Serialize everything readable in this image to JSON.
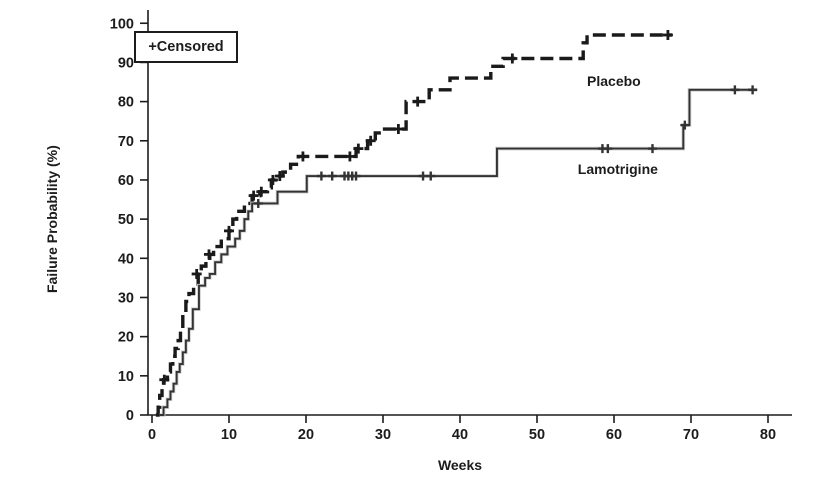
{
  "figure": {
    "background": "#ffffff",
    "ink_color": "#1c1c1c"
  },
  "chart_data": {
    "type": "line",
    "subtype": "kaplan-meier-step",
    "title": "",
    "xlabel": "Weeks",
    "ylabel": "Failure Probability (%)",
    "xlim": [
      0,
      80
    ],
    "ylim": [
      0,
      100
    ],
    "xticks": [
      0,
      10,
      20,
      30,
      40,
      50,
      60,
      70,
      80
    ],
    "yticks": [
      0,
      10,
      20,
      30,
      40,
      50,
      60,
      70,
      80,
      90,
      100
    ],
    "grid": false,
    "legend": {
      "text": "+Censored",
      "position": "top-left"
    },
    "series": [
      {
        "name": "Placebo",
        "line_style": "dashed",
        "color": "#1a1a1a",
        "label_anchor": {
          "week": 56.5,
          "prob": 84
        },
        "steps": [
          [
            0.5,
            0
          ],
          [
            0.8,
            2
          ],
          [
            1,
            5
          ],
          [
            1.3,
            7
          ],
          [
            1.5,
            9
          ],
          [
            2,
            11
          ],
          [
            2.4,
            13
          ],
          [
            2.7,
            15
          ],
          [
            3,
            17
          ],
          [
            3.4,
            19
          ],
          [
            3.7,
            22
          ],
          [
            4,
            26
          ],
          [
            4.4,
            29
          ],
          [
            4.8,
            31
          ],
          [
            5.4,
            33
          ],
          [
            6,
            36
          ],
          [
            6.4,
            38
          ],
          [
            7,
            40
          ],
          [
            7.5,
            41
          ],
          [
            8,
            43
          ],
          [
            9,
            45
          ],
          [
            10,
            47
          ],
          [
            10.5,
            50
          ],
          [
            11,
            52
          ],
          [
            12,
            54
          ],
          [
            13,
            56
          ],
          [
            14,
            57
          ],
          [
            15,
            58
          ],
          [
            15.5,
            60
          ],
          [
            16,
            61
          ],
          [
            17,
            62
          ],
          [
            18,
            64
          ],
          [
            19,
            66
          ],
          [
            26.5,
            68
          ],
          [
            28,
            70
          ],
          [
            29,
            72
          ],
          [
            29.5,
            73
          ],
          [
            33,
            80
          ],
          [
            36,
            83
          ],
          [
            38.7,
            86
          ],
          [
            44,
            89
          ],
          [
            45.6,
            91
          ],
          [
            56,
            95
          ],
          [
            56.5,
            97
          ],
          [
            67.5,
            97
          ]
        ],
        "censored": [
          [
            1.6,
            9
          ],
          [
            5.8,
            36
          ],
          [
            7.4,
            41
          ],
          [
            10,
            47
          ],
          [
            13.2,
            56
          ],
          [
            14.2,
            57
          ],
          [
            15.7,
            60
          ],
          [
            16.6,
            61
          ],
          [
            19.6,
            66
          ],
          [
            25.7,
            66
          ],
          [
            26.8,
            68
          ],
          [
            28.4,
            70
          ],
          [
            32,
            73
          ],
          [
            34.5,
            80
          ],
          [
            46.8,
            91
          ],
          [
            67,
            97
          ]
        ]
      },
      {
        "name": "Lamotrigine",
        "line_style": "solid",
        "color": "#333333",
        "label_anchor": {
          "week": 55.3,
          "prob": 61.5
        },
        "steps": [
          [
            1,
            0
          ],
          [
            1.5,
            2
          ],
          [
            2,
            4
          ],
          [
            2.4,
            6
          ],
          [
            2.8,
            8
          ],
          [
            3.2,
            11
          ],
          [
            3.6,
            13
          ],
          [
            4,
            16
          ],
          [
            4.4,
            19
          ],
          [
            4.8,
            22
          ],
          [
            5.3,
            27
          ],
          [
            6.1,
            33
          ],
          [
            6.9,
            35
          ],
          [
            7.5,
            36
          ],
          [
            8.2,
            39
          ],
          [
            9,
            41
          ],
          [
            9.8,
            43
          ],
          [
            10.8,
            45
          ],
          [
            11.4,
            47
          ],
          [
            12,
            50
          ],
          [
            12.5,
            52
          ],
          [
            13,
            54
          ],
          [
            16.3,
            57
          ],
          [
            20.1,
            61
          ],
          [
            44.8,
            68
          ],
          [
            69,
            74
          ],
          [
            69.8,
            83
          ],
          [
            78.6,
            83
          ]
        ],
        "censored": [
          [
            13.8,
            54
          ],
          [
            22,
            61
          ],
          [
            23.4,
            61
          ],
          [
            25,
            61
          ],
          [
            25.5,
            61
          ],
          [
            26,
            61
          ],
          [
            26.5,
            61
          ],
          [
            35.2,
            61
          ],
          [
            36.2,
            61
          ],
          [
            58.5,
            68
          ],
          [
            59.2,
            68
          ],
          [
            65,
            68
          ],
          [
            69.2,
            74
          ],
          [
            75.7,
            83
          ],
          [
            78,
            83
          ]
        ]
      }
    ]
  }
}
